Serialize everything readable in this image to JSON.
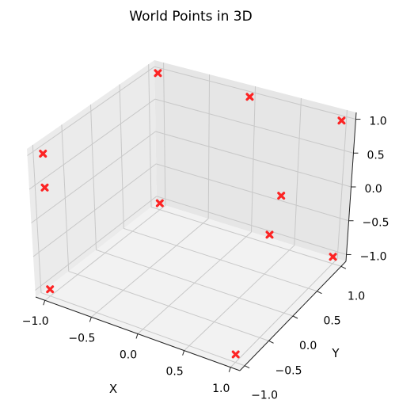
{
  "chart_data": {
    "type": "scatter",
    "projection": "3d",
    "title": "World Points in 3D",
    "xlabel": "X",
    "ylabel": "Y",
    "zlabel": "",
    "xlim": [
      -1.1,
      1.1
    ],
    "ylim": [
      -1.1,
      1.1
    ],
    "zlim": [
      -1.1,
      1.1
    ],
    "xticks": [
      "−1.0",
      "−0.5",
      "0.0",
      "0.5",
      "1.0"
    ],
    "yticks": [
      "−1.0",
      "−0.5",
      "0.0",
      "0.5",
      "1.0"
    ],
    "zticks": [
      "−1.0",
      "−0.5",
      "0.0",
      "0.5",
      "1.0"
    ],
    "grid": true,
    "marker": "X",
    "color": "#ff0000",
    "points": [
      {
        "x": 1.0,
        "y": -1.0,
        "z": -1.0
      },
      {
        "x": -1.0,
        "y": -1.0,
        "z": -1.0
      },
      {
        "x": 1.0,
        "y": 1.0,
        "z": -1.0
      },
      {
        "x": -1.0,
        "y": 1.0,
        "z": -1.0
      },
      {
        "x": 1.0,
        "y": 1.0,
        "z": 1.0
      },
      {
        "x": -1.0,
        "y": 1.0,
        "z": 1.0
      },
      {
        "x": -1.0,
        "y": -1.0,
        "z": 1.0
      },
      {
        "x": 0.0,
        "y": 1.0,
        "z": 1.0
      },
      {
        "x": 0.6,
        "y": 0.6,
        "z": 0.0
      },
      {
        "x": 0.65,
        "y": 0.3,
        "z": -0.35
      },
      {
        "x": -1.0,
        "y": -1.0,
        "z": 0.5
      }
    ]
  },
  "colors": {
    "pane_back": "#e6e6e6",
    "pane_side": "#ebebeb",
    "pane_floor": "#f2f2f2",
    "grid": "#c8c8c8",
    "axis": "#222222",
    "marker": "#ff0000"
  }
}
